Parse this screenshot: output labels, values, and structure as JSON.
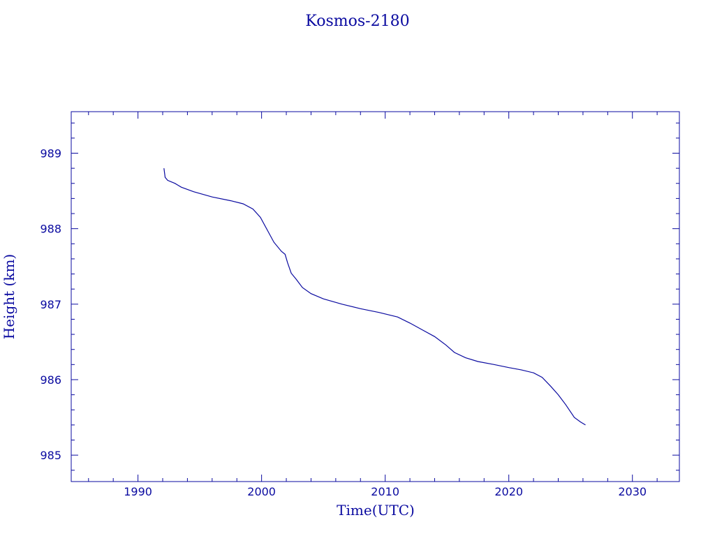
{
  "chart_data": {
    "type": "line",
    "title": "Kosmos-2180",
    "xlabel": "Time(UTC)",
    "ylabel": "Height (km)",
    "xlim": [
      1984.6,
      2033.8
    ],
    "ylim": [
      984.65,
      989.55
    ],
    "x_ticks": [
      1990,
      2000,
      2010,
      2020,
      2030
    ],
    "y_ticks": [
      985,
      986,
      987,
      988,
      989
    ],
    "grid": false,
    "color": "#0a0aa0",
    "series": [
      {
        "x": [
          1992.1,
          1992.2,
          1992.4,
          1993.0,
          1993.5,
          1994.5,
          1996.0,
          1997.5,
          1998.5,
          1999.3,
          1999.9,
          2000.5,
          2001.0,
          2001.6,
          2001.9,
          2002.1,
          2002.4,
          2002.8,
          2003.3,
          2004.0,
          2005.0,
          2006.5,
          2008.0,
          2009.5,
          2011.0,
          2012.0,
          2013.0,
          2014.0,
          2014.9,
          2015.6,
          2016.5,
          2017.5,
          2018.8,
          2020.0,
          2021.0,
          2022.0,
          2022.7,
          2023.4,
          2024.0,
          2024.6,
          2025.3,
          2025.8,
          2026.2
        ],
        "y": [
          988.8,
          988.68,
          988.64,
          988.6,
          988.55,
          988.49,
          988.42,
          988.37,
          988.33,
          988.26,
          988.15,
          987.97,
          987.82,
          987.7,
          987.66,
          987.55,
          987.41,
          987.33,
          987.22,
          987.14,
          987.07,
          987.0,
          986.94,
          986.89,
          986.83,
          986.75,
          986.66,
          986.57,
          986.46,
          986.36,
          986.29,
          986.24,
          986.2,
          986.16,
          986.13,
          986.09,
          986.03,
          985.91,
          985.8,
          985.67,
          985.5,
          985.44,
          985.4
        ]
      }
    ]
  }
}
